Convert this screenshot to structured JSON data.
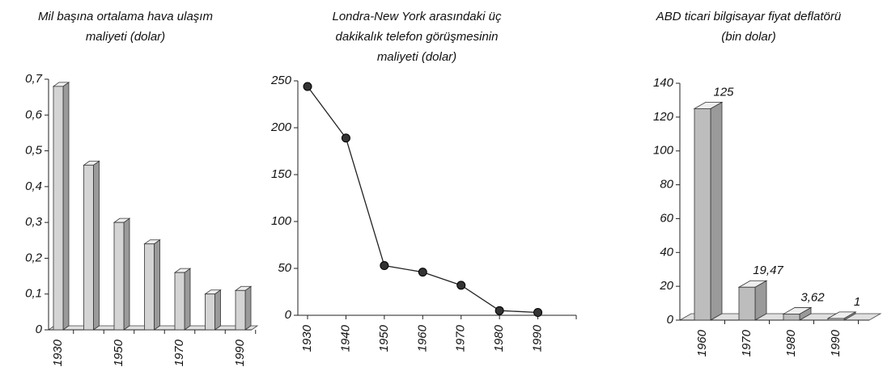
{
  "chart_data": [
    {
      "type": "bar3d",
      "title": "Mil başına ortalama hava ulaşım maliyeti (dolar)",
      "categories": [
        "1930",
        null,
        "1950",
        null,
        "1970",
        null,
        "1990"
      ],
      "values": [
        0.68,
        0.46,
        0.3,
        0.24,
        0.16,
        0.1,
        0.11
      ],
      "color": "#d4d4d4",
      "ylim": [
        0,
        0.7
      ],
      "yticks": [
        0,
        {
          "value": 0.1,
          "label": "0,1"
        },
        {
          "value": 0.2,
          "label": "0,2"
        },
        {
          "value": 0.3,
          "label": "0,3"
        },
        {
          "value": 0.4,
          "label": "0,4"
        },
        {
          "value": 0.5,
          "label": "0,5"
        },
        {
          "value": 0.6,
          "label": "0,6"
        },
        {
          "value": 0.7,
          "label": "0,7"
        }
      ]
    },
    {
      "type": "line",
      "title": "Londra-New York arasındaki üç dakikalık telefon görüşmesinin maliyeti (dolar)",
      "x": [
        1930,
        1940,
        1950,
        1960,
        1970,
        1980,
        1990
      ],
      "values": [
        244,
        189,
        53,
        46,
        32,
        5,
        3
      ],
      "color": "#222",
      "xlim": [
        1930,
        2000
      ],
      "xticks": [
        1930,
        1940,
        1950,
        1960,
        1970,
        1980,
        1990
      ],
      "ylim": [
        0,
        250
      ],
      "yticks": [
        0,
        50,
        100,
        150,
        200,
        250
      ]
    },
    {
      "type": "bar3d",
      "title": "ABD ticari bilgisayar fiyat deflatörü (bin dolar)",
      "categories": [
        "1960",
        "1970",
        "1980",
        "1990"
      ],
      "values": [
        125,
        19.47,
        3.62,
        1
      ],
      "value_labels": [
        "125",
        "19,47",
        "3,62",
        "1"
      ],
      "color": "#bdbdbd",
      "ylim": [
        0,
        140
      ],
      "yticks": [
        0,
        20,
        40,
        60,
        80,
        100,
        120,
        140
      ]
    }
  ]
}
